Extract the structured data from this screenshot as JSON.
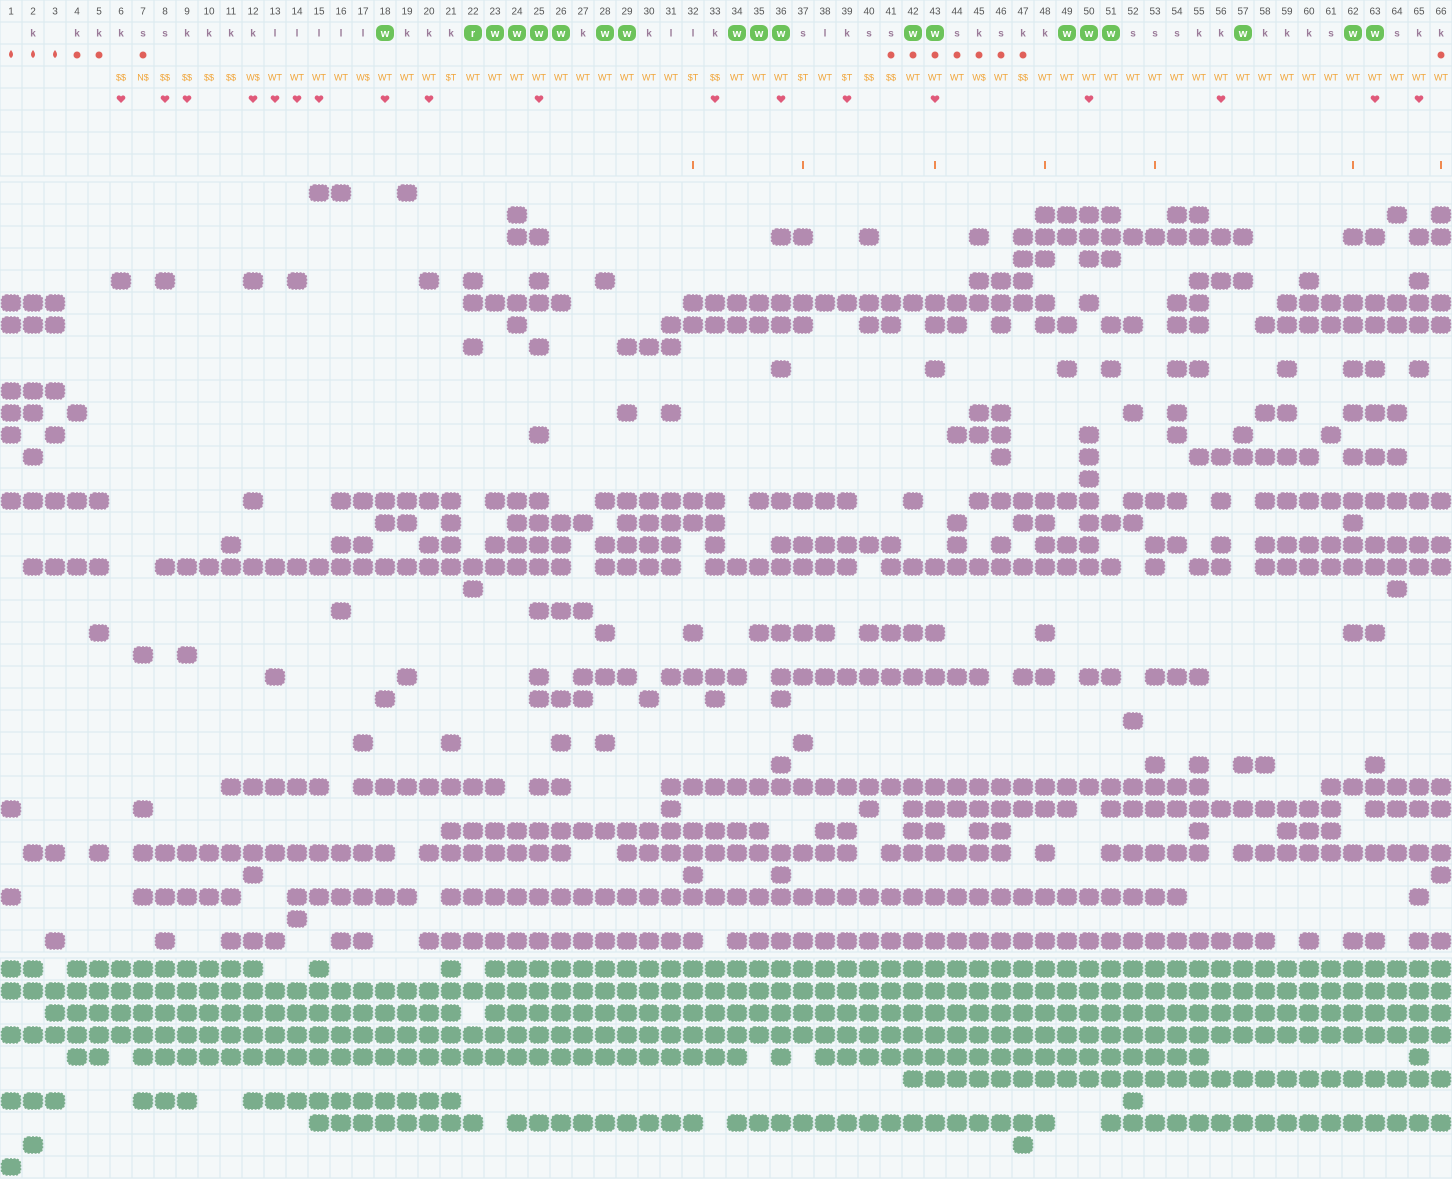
{
  "columns": [
    1,
    2,
    3,
    4,
    5,
    6,
    7,
    8,
    9,
    10,
    11,
    12,
    13,
    14,
    15,
    16,
    17,
    18,
    19,
    20,
    21,
    22,
    23,
    24,
    25,
    26,
    27,
    28,
    29,
    30,
    31,
    32,
    33,
    34,
    35,
    36,
    37,
    38,
    39,
    40,
    41,
    42,
    43,
    44,
    45,
    46,
    47,
    48,
    49,
    50,
    51,
    52,
    53,
    54,
    55,
    56,
    57,
    58,
    59,
    60,
    61,
    62,
    63,
    64,
    65,
    66
  ],
  "letters": [
    null,
    "k",
    null,
    "k",
    "k",
    "k",
    "s",
    "s",
    "k",
    "k",
    "k",
    "k",
    "l",
    "l",
    "l",
    "l",
    "l",
    "w",
    "k",
    "k",
    "k",
    "r",
    "w",
    "w",
    "w",
    "w",
    "k",
    "w",
    "w",
    "k",
    "l",
    "l",
    "k",
    "w",
    "w",
    "w",
    "s",
    "l",
    "k",
    "s",
    "s",
    "w",
    "w",
    "s",
    "k",
    "s",
    "k",
    "k",
    "w",
    "w",
    "w",
    "s",
    "s",
    "s",
    "k",
    "k",
    "w",
    "k",
    "k",
    "k",
    "s",
    "w",
    "w",
    "s",
    "k",
    "k"
  ],
  "labels": [
    null,
    null,
    null,
    null,
    null,
    "$$",
    "N$",
    "$$",
    "$$",
    "$$",
    "$$",
    "W$",
    "WT",
    "WT",
    "WT",
    "WT",
    "W$",
    "WT",
    "WT",
    "WT",
    "$T",
    "WT",
    "WT",
    "WT",
    "WT",
    "WT",
    "WT",
    "WT",
    "WT",
    "WT",
    "WT",
    "$T",
    "$$",
    "WT",
    "WT",
    "WT",
    "$T",
    "WT",
    "$T",
    "$$",
    "$$",
    "WT",
    "WT",
    "WT",
    "W$",
    "WT",
    "$$",
    "WT",
    "WT",
    "WT",
    "WT",
    "WT",
    "WT",
    "WT",
    "WT",
    "WT",
    "WT",
    "WT",
    "WT",
    "WT",
    "WT",
    "WT",
    "WT",
    "WT",
    "WT",
    "WT"
  ],
  "drop_cols": [
    1,
    2,
    3
  ],
  "dot_cols": [
    4,
    5,
    7,
    41,
    42,
    43,
    44,
    45,
    46,
    47,
    66
  ],
  "heart_cols": [
    6,
    8,
    9,
    12,
    13,
    14,
    15,
    18,
    20,
    25,
    33,
    36,
    39,
    43,
    50,
    56,
    63,
    65
  ],
  "tick_cols": [
    32,
    37,
    43,
    48,
    53,
    62,
    66
  ],
  "purple_rows": [
    [
      [
        15,
        16
      ],
      [
        19,
        19
      ]
    ],
    [
      [
        24,
        24
      ],
      [
        48,
        51
      ],
      [
        54,
        55
      ],
      [
        64,
        64
      ],
      [
        66,
        66
      ]
    ],
    [
      [
        24,
        25
      ],
      [
        36,
        37
      ],
      [
        40,
        40
      ],
      [
        45,
        45
      ],
      [
        47,
        57
      ],
      [
        62,
        63
      ],
      [
        65,
        66
      ]
    ],
    [
      [
        47,
        48
      ],
      [
        50,
        51
      ]
    ],
    [
      [
        6,
        6
      ],
      [
        8,
        8
      ],
      [
        12,
        12
      ],
      [
        14,
        14
      ],
      [
        20,
        20
      ],
      [
        22,
        22
      ],
      [
        25,
        25
      ],
      [
        28,
        28
      ],
      [
        45,
        47
      ],
      [
        55,
        57
      ],
      [
        60,
        60
      ],
      [
        65,
        65
      ]
    ],
    [
      [
        1,
        3
      ],
      [
        22,
        26
      ],
      [
        32,
        48
      ],
      [
        50,
        50
      ],
      [
        54,
        55
      ],
      [
        59,
        66
      ]
    ],
    [
      [
        1,
        3
      ],
      [
        24,
        24
      ],
      [
        31,
        37
      ],
      [
        40,
        41
      ],
      [
        43,
        44
      ],
      [
        46,
        46
      ],
      [
        48,
        49
      ],
      [
        51,
        52
      ],
      [
        54,
        55
      ],
      [
        58,
        66
      ]
    ],
    [
      [
        22,
        22
      ],
      [
        25,
        25
      ],
      [
        29,
        31
      ]
    ],
    [
      [
        36,
        36
      ],
      [
        43,
        43
      ],
      [
        49,
        49
      ],
      [
        51,
        51
      ],
      [
        54,
        55
      ],
      [
        59,
        59
      ],
      [
        62,
        63
      ],
      [
        65,
        65
      ]
    ],
    [
      [
        1,
        3
      ]
    ],
    [
      [
        1,
        2
      ],
      [
        4,
        4
      ],
      [
        29,
        29
      ],
      [
        31,
        31
      ],
      [
        45,
        46
      ],
      [
        52,
        52
      ],
      [
        54,
        54
      ],
      [
        58,
        59
      ],
      [
        62,
        64
      ]
    ],
    [
      [
        1,
        1
      ],
      [
        3,
        3
      ],
      [
        25,
        25
      ],
      [
        44,
        46
      ],
      [
        50,
        50
      ],
      [
        54,
        54
      ],
      [
        57,
        57
      ],
      [
        61,
        61
      ]
    ],
    [
      [
        2,
        2
      ],
      [
        46,
        46
      ],
      [
        50,
        50
      ],
      [
        55,
        60
      ],
      [
        62,
        64
      ]
    ],
    [
      [
        50,
        50
      ]
    ],
    [
      [
        1,
        5
      ],
      [
        12,
        12
      ],
      [
        16,
        21
      ],
      [
        23,
        25
      ],
      [
        28,
        33
      ],
      [
        35,
        39
      ],
      [
        42,
        42
      ],
      [
        45,
        50
      ],
      [
        52,
        54
      ],
      [
        56,
        56
      ],
      [
        58,
        66
      ]
    ],
    [
      [
        18,
        19
      ],
      [
        21,
        21
      ],
      [
        24,
        27
      ],
      [
        29,
        33
      ],
      [
        44,
        44
      ],
      [
        47,
        48
      ],
      [
        50,
        52
      ],
      [
        62,
        62
      ]
    ],
    [
      [
        11,
        11
      ],
      [
        16,
        17
      ],
      [
        20,
        21
      ],
      [
        23,
        26
      ],
      [
        28,
        31
      ],
      [
        33,
        33
      ],
      [
        36,
        41
      ],
      [
        44,
        44
      ],
      [
        46,
        46
      ],
      [
        48,
        50
      ],
      [
        53,
        54
      ],
      [
        56,
        56
      ],
      [
        58,
        66
      ]
    ],
    [
      [
        2,
        5
      ],
      [
        8,
        26
      ],
      [
        28,
        31
      ],
      [
        33,
        39
      ],
      [
        41,
        51
      ],
      [
        53,
        53
      ],
      [
        55,
        56
      ],
      [
        58,
        66
      ]
    ],
    [
      [
        22,
        22
      ],
      [
        64,
        64
      ]
    ],
    [
      [
        16,
        16
      ],
      [
        25,
        27
      ]
    ],
    [
      [
        5,
        5
      ],
      [
        28,
        28
      ],
      [
        32,
        32
      ],
      [
        35,
        38
      ],
      [
        40,
        43
      ],
      [
        48,
        48
      ],
      [
        62,
        63
      ]
    ],
    [
      [
        7,
        7
      ],
      [
        9,
        9
      ]
    ],
    [
      [
        13,
        13
      ],
      [
        19,
        19
      ],
      [
        25,
        25
      ],
      [
        27,
        29
      ],
      [
        31,
        34
      ],
      [
        36,
        45
      ],
      [
        47,
        48
      ],
      [
        50,
        51
      ],
      [
        53,
        55
      ]
    ],
    [
      [
        18,
        18
      ],
      [
        25,
        27
      ],
      [
        30,
        30
      ],
      [
        33,
        33
      ],
      [
        36,
        36
      ]
    ],
    [
      [
        52,
        52
      ]
    ],
    [
      [
        17,
        17
      ],
      [
        21,
        21
      ],
      [
        26,
        26
      ],
      [
        28,
        28
      ],
      [
        37,
        37
      ]
    ],
    [
      [
        36,
        36
      ],
      [
        53,
        53
      ],
      [
        55,
        55
      ],
      [
        57,
        58
      ],
      [
        63,
        63
      ]
    ],
    [
      [
        11,
        15
      ],
      [
        17,
        23
      ],
      [
        25,
        26
      ],
      [
        31,
        55
      ],
      [
        61,
        66
      ]
    ],
    [
      [
        1,
        1
      ],
      [
        7,
        7
      ],
      [
        31,
        31
      ],
      [
        40,
        40
      ],
      [
        42,
        49
      ],
      [
        51,
        61
      ],
      [
        63,
        66
      ]
    ],
    [
      [
        21,
        35
      ],
      [
        38,
        39
      ],
      [
        42,
        43
      ],
      [
        45,
        46
      ],
      [
        55,
        55
      ],
      [
        59,
        61
      ]
    ],
    [
      [
        2,
        3
      ],
      [
        5,
        5
      ],
      [
        7,
        18
      ],
      [
        20,
        26
      ],
      [
        29,
        39
      ],
      [
        41,
        46
      ],
      [
        48,
        48
      ],
      [
        51,
        55
      ],
      [
        57,
        66
      ]
    ],
    [
      [
        12,
        12
      ],
      [
        32,
        32
      ],
      [
        36,
        36
      ],
      [
        66,
        66
      ]
    ],
    [
      [
        1,
        1
      ],
      [
        7,
        11
      ],
      [
        14,
        19
      ],
      [
        21,
        54
      ],
      [
        65,
        65
      ]
    ],
    [
      [
        14,
        14
      ]
    ],
    [
      [
        3,
        3
      ],
      [
        8,
        8
      ],
      [
        11,
        13
      ],
      [
        16,
        17
      ],
      [
        20,
        32
      ],
      [
        34,
        58
      ],
      [
        60,
        60
      ],
      [
        62,
        63
      ],
      [
        65,
        66
      ]
    ]
  ],
  "green_rows": [
    [
      [
        1,
        2
      ],
      [
        4,
        12
      ],
      [
        15,
        15
      ],
      [
        21,
        21
      ],
      [
        23,
        66
      ]
    ],
    [
      [
        1,
        66
      ]
    ],
    [
      [
        3,
        21
      ],
      [
        23,
        66
      ]
    ],
    [
      [
        1,
        66
      ]
    ],
    [
      [
        4,
        5
      ],
      [
        7,
        34
      ],
      [
        36,
        36
      ],
      [
        38,
        55
      ],
      [
        65,
        65
      ]
    ],
    [
      [
        42,
        66
      ]
    ],
    [
      [
        1,
        3
      ],
      [
        7,
        9
      ],
      [
        12,
        21
      ],
      [
        52,
        52
      ]
    ],
    [
      [
        15,
        22
      ],
      [
        24,
        32
      ],
      [
        34,
        48
      ],
      [
        51,
        66
      ]
    ],
    [
      [
        2,
        2
      ],
      [
        47,
        47
      ]
    ],
    [
      [
        1,
        1
      ]
    ]
  ]
}
